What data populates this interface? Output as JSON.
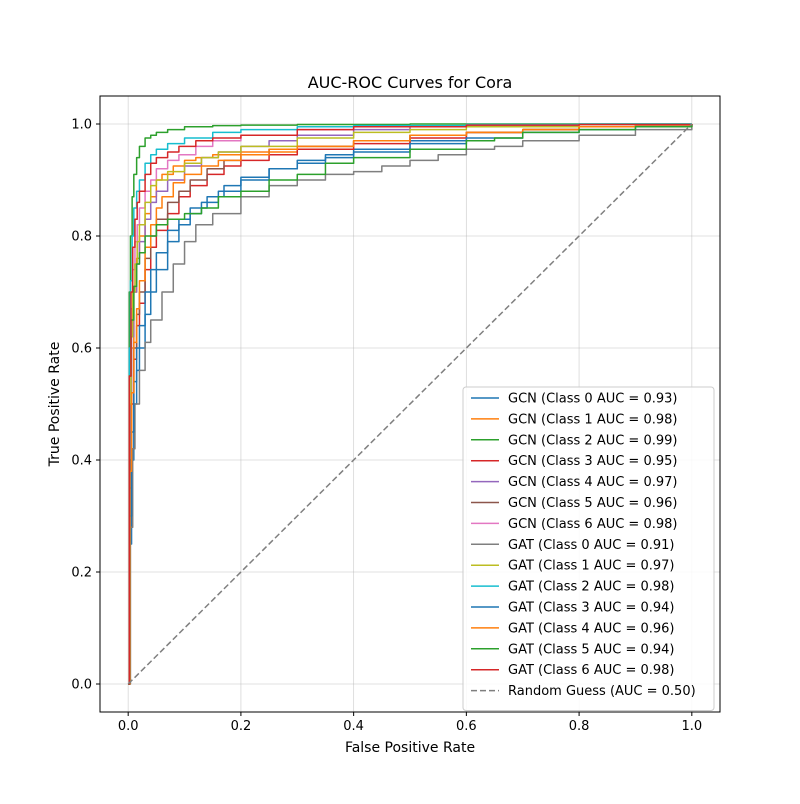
{
  "chart_data": {
    "type": "line",
    "title": "AUC-ROC Curves for Cora",
    "xlabel": "False Positive Rate",
    "ylabel": "True Positive Rate",
    "xlim": [
      -0.05,
      1.05
    ],
    "ylim": [
      -0.05,
      1.05
    ],
    "grid": true,
    "legend_position": "lower-right",
    "x_ticks": [
      0.0,
      0.2,
      0.4,
      0.6,
      0.8,
      1.0
    ],
    "y_ticks": [
      0.0,
      0.2,
      0.4,
      0.6,
      0.8,
      1.0
    ],
    "x_tick_labels": [
      "0.0",
      "0.2",
      "0.4",
      "0.6",
      "0.8",
      "1.0"
    ],
    "y_tick_labels": [
      "0.0",
      "0.2",
      "0.4",
      "0.6",
      "0.8",
      "1.0"
    ],
    "series": [
      {
        "name": "GCN (Class 0 AUC = 0.93)",
        "color": "#1f77b4",
        "dash": "solid",
        "x": [
          0,
          0.003,
          0.006,
          0.01,
          0.015,
          0.02,
          0.03,
          0.04,
          0.05,
          0.07,
          0.09,
          0.11,
          0.13,
          0.16,
          0.2,
          0.25,
          0.3,
          0.35,
          0.4,
          0.5,
          0.6,
          0.7,
          0.8,
          0.9,
          1.0
        ],
        "y": [
          0,
          0.25,
          0.4,
          0.5,
          0.56,
          0.6,
          0.66,
          0.7,
          0.74,
          0.79,
          0.82,
          0.84,
          0.86,
          0.88,
          0.9,
          0.92,
          0.935,
          0.945,
          0.955,
          0.97,
          0.985,
          0.99,
          0.995,
          0.998,
          1.0
        ]
      },
      {
        "name": "GCN (Class 1 AUC = 0.98)",
        "color": "#ff7f0e",
        "dash": "solid",
        "x": [
          0,
          0.003,
          0.006,
          0.01,
          0.015,
          0.02,
          0.03,
          0.04,
          0.05,
          0.06,
          0.08,
          0.1,
          0.12,
          0.15,
          0.2,
          0.3,
          0.4,
          0.5,
          0.6,
          0.7,
          0.8,
          0.9,
          1.0
        ],
        "y": [
          0,
          0.45,
          0.6,
          0.7,
          0.76,
          0.8,
          0.84,
          0.87,
          0.9,
          0.91,
          0.925,
          0.935,
          0.94,
          0.945,
          0.95,
          0.96,
          0.97,
          0.98,
          0.985,
          0.99,
          0.995,
          0.998,
          1.0
        ]
      },
      {
        "name": "GCN (Class 2 AUC = 0.99)",
        "color": "#2ca02c",
        "dash": "solid",
        "x": [
          0,
          0.002,
          0.004,
          0.007,
          0.01,
          0.015,
          0.02,
          0.03,
          0.04,
          0.05,
          0.07,
          0.1,
          0.15,
          0.2,
          0.3,
          0.5,
          0.7,
          1.0
        ],
        "y": [
          0,
          0.7,
          0.8,
          0.87,
          0.91,
          0.94,
          0.96,
          0.975,
          0.98,
          0.985,
          0.99,
          0.995,
          0.997,
          0.998,
          0.999,
          1.0,
          1.0,
          1.0
        ]
      },
      {
        "name": "GCN (Class 3 AUC = 0.95)",
        "color": "#d62728",
        "dash": "solid",
        "x": [
          0,
          0.003,
          0.006,
          0.01,
          0.015,
          0.02,
          0.03,
          0.04,
          0.05,
          0.07,
          0.09,
          0.11,
          0.14,
          0.17,
          0.2,
          0.25,
          0.3,
          0.4,
          0.5,
          0.6,
          0.7,
          0.8,
          1.0
        ],
        "y": [
          0,
          0.35,
          0.5,
          0.58,
          0.64,
          0.68,
          0.74,
          0.78,
          0.81,
          0.84,
          0.87,
          0.89,
          0.91,
          0.925,
          0.935,
          0.945,
          0.955,
          0.965,
          0.975,
          0.985,
          0.99,
          0.995,
          1.0
        ]
      },
      {
        "name": "GCN (Class 4 AUC = 0.97)",
        "color": "#9467bd",
        "dash": "solid",
        "x": [
          0,
          0.003,
          0.006,
          0.01,
          0.015,
          0.02,
          0.03,
          0.04,
          0.05,
          0.07,
          0.1,
          0.13,
          0.16,
          0.2,
          0.25,
          0.3,
          0.4,
          0.5,
          0.6,
          0.8,
          1.0
        ],
        "y": [
          0,
          0.5,
          0.62,
          0.7,
          0.75,
          0.79,
          0.83,
          0.86,
          0.88,
          0.9,
          0.925,
          0.94,
          0.95,
          0.96,
          0.97,
          0.98,
          0.99,
          0.995,
          0.997,
          0.999,
          1.0
        ]
      },
      {
        "name": "GCN (Class 5 AUC = 0.96)",
        "color": "#8c564b",
        "dash": "solid",
        "x": [
          0,
          0.003,
          0.006,
          0.01,
          0.015,
          0.02,
          0.03,
          0.04,
          0.05,
          0.07,
          0.09,
          0.11,
          0.14,
          0.17,
          0.2,
          0.25,
          0.3,
          0.4,
          0.5,
          0.6,
          0.7,
          0.8,
          1.0
        ],
        "y": [
          0,
          0.4,
          0.52,
          0.6,
          0.66,
          0.7,
          0.76,
          0.8,
          0.83,
          0.86,
          0.88,
          0.9,
          0.92,
          0.935,
          0.945,
          0.955,
          0.96,
          0.97,
          0.98,
          0.985,
          0.99,
          0.995,
          1.0
        ]
      },
      {
        "name": "GCN (Class 6 AUC = 0.98)",
        "color": "#e377c2",
        "dash": "solid",
        "x": [
          0,
          0.002,
          0.005,
          0.008,
          0.012,
          0.016,
          0.02,
          0.03,
          0.04,
          0.05,
          0.07,
          0.09,
          0.12,
          0.15,
          0.2,
          0.3,
          0.4,
          0.6,
          0.8,
          1.0
        ],
        "y": [
          0,
          0.55,
          0.67,
          0.74,
          0.79,
          0.82,
          0.85,
          0.88,
          0.9,
          0.92,
          0.935,
          0.945,
          0.96,
          0.97,
          0.98,
          0.99,
          0.995,
          0.998,
          0.999,
          1.0
        ]
      },
      {
        "name": "GAT (Class 0 AUC = 0.91)",
        "color": "#7f7f7f",
        "dash": "solid",
        "x": [
          0,
          0.004,
          0.008,
          0.012,
          0.02,
          0.03,
          0.04,
          0.06,
          0.08,
          0.1,
          0.12,
          0.15,
          0.2,
          0.25,
          0.3,
          0.35,
          0.4,
          0.45,
          0.5,
          0.55,
          0.6,
          0.65,
          0.7,
          0.8,
          0.9,
          1.0
        ],
        "y": [
          0,
          0.28,
          0.42,
          0.5,
          0.56,
          0.61,
          0.65,
          0.7,
          0.75,
          0.79,
          0.82,
          0.84,
          0.87,
          0.89,
          0.9,
          0.91,
          0.915,
          0.925,
          0.935,
          0.945,
          0.955,
          0.96,
          0.97,
          0.98,
          0.99,
          1.0
        ]
      },
      {
        "name": "GAT (Class 1 AUC = 0.97)",
        "color": "#bcbd22",
        "dash": "solid",
        "x": [
          0,
          0.002,
          0.005,
          0.008,
          0.012,
          0.016,
          0.02,
          0.03,
          0.04,
          0.05,
          0.07,
          0.1,
          0.13,
          0.16,
          0.2,
          0.3,
          0.4,
          0.5,
          0.6,
          0.8,
          1.0
        ],
        "y": [
          0,
          0.5,
          0.62,
          0.7,
          0.75,
          0.79,
          0.82,
          0.86,
          0.89,
          0.9,
          0.915,
          0.93,
          0.94,
          0.95,
          0.96,
          0.975,
          0.985,
          0.99,
          0.995,
          0.999,
          1.0
        ]
      },
      {
        "name": "GAT (Class 2 AUC = 0.98)",
        "color": "#17becf",
        "dash": "solid",
        "x": [
          0,
          0.002,
          0.004,
          0.007,
          0.01,
          0.015,
          0.02,
          0.03,
          0.04,
          0.05,
          0.07,
          0.1,
          0.15,
          0.2,
          0.3,
          0.4,
          0.6,
          0.8,
          1.0
        ],
        "y": [
          0,
          0.6,
          0.72,
          0.8,
          0.85,
          0.88,
          0.9,
          0.93,
          0.945,
          0.955,
          0.965,
          0.975,
          0.985,
          0.99,
          0.995,
          0.997,
          0.999,
          1.0,
          1.0
        ]
      },
      {
        "name": "GAT (Class 3 AUC = 0.94)",
        "color": "#1f77b4",
        "dash": "solid",
        "x": [
          0,
          0.003,
          0.006,
          0.01,
          0.015,
          0.02,
          0.03,
          0.04,
          0.05,
          0.07,
          0.09,
          0.11,
          0.14,
          0.17,
          0.2,
          0.25,
          0.3,
          0.35,
          0.4,
          0.5,
          0.6,
          0.7,
          0.8,
          0.9,
          1.0
        ],
        "y": [
          0,
          0.3,
          0.45,
          0.54,
          0.6,
          0.64,
          0.7,
          0.74,
          0.77,
          0.81,
          0.83,
          0.85,
          0.87,
          0.89,
          0.905,
          0.92,
          0.93,
          0.94,
          0.95,
          0.965,
          0.975,
          0.985,
          0.99,
          0.995,
          1.0
        ]
      },
      {
        "name": "GAT (Class 4 AUC = 0.96)",
        "color": "#ff7f0e",
        "dash": "solid",
        "x": [
          0,
          0.003,
          0.006,
          0.01,
          0.015,
          0.02,
          0.03,
          0.04,
          0.05,
          0.06,
          0.08,
          0.1,
          0.13,
          0.16,
          0.2,
          0.25,
          0.3,
          0.4,
          0.5,
          0.6,
          0.7,
          0.8,
          1.0
        ],
        "y": [
          0,
          0.38,
          0.52,
          0.61,
          0.67,
          0.72,
          0.78,
          0.82,
          0.85,
          0.87,
          0.895,
          0.91,
          0.925,
          0.935,
          0.945,
          0.955,
          0.96,
          0.97,
          0.98,
          0.985,
          0.99,
          0.995,
          1.0
        ]
      },
      {
        "name": "GAT (Class 5 AUC = 0.94)",
        "color": "#2ca02c",
        "dash": "solid",
        "x": [
          0,
          0.002,
          0.005,
          0.01,
          0.015,
          0.02,
          0.03,
          0.05,
          0.07,
          0.1,
          0.13,
          0.16,
          0.2,
          0.25,
          0.3,
          0.35,
          0.4,
          0.5,
          0.6,
          0.65,
          0.7,
          0.8,
          0.9,
          1.0
        ],
        "y": [
          0,
          0.55,
          0.65,
          0.71,
          0.75,
          0.77,
          0.8,
          0.82,
          0.83,
          0.84,
          0.85,
          0.87,
          0.88,
          0.9,
          0.91,
          0.93,
          0.94,
          0.955,
          0.97,
          0.975,
          0.985,
          0.99,
          0.995,
          1.0
        ]
      },
      {
        "name": "GAT (Class 6 AUC = 0.98)",
        "color": "#d62728",
        "dash": "solid",
        "x": [
          0,
          0.002,
          0.005,
          0.008,
          0.012,
          0.016,
          0.02,
          0.03,
          0.04,
          0.05,
          0.07,
          0.09,
          0.12,
          0.15,
          0.2,
          0.3,
          0.4,
          0.6,
          0.8,
          1.0
        ],
        "y": [
          0,
          0.55,
          0.7,
          0.78,
          0.83,
          0.86,
          0.88,
          0.91,
          0.93,
          0.94,
          0.95,
          0.96,
          0.97,
          0.975,
          0.98,
          0.99,
          0.995,
          0.998,
          0.999,
          1.0
        ]
      },
      {
        "name": "Random Guess (AUC = 0.50)",
        "color": "#7f7f7f",
        "dash": "dashed",
        "x": [
          0,
          1
        ],
        "y": [
          0,
          1
        ]
      }
    ]
  }
}
